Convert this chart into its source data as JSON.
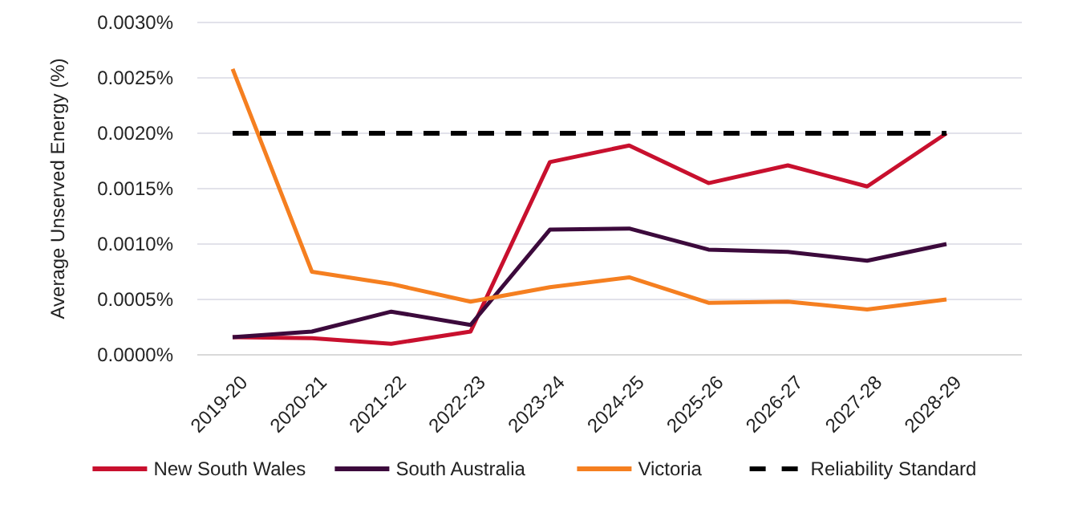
{
  "chart_data": {
    "type": "line",
    "ylabel": "Average Unserved Energy (%)",
    "categories": [
      "2019-20",
      "2020-21",
      "2021-22",
      "2022-23",
      "2023-24",
      "2024-25",
      "2025-26",
      "2026-27",
      "2027-28",
      "2028-29"
    ],
    "series": [
      {
        "name": "New South Wales",
        "color": "#c8102e",
        "values": [
          0.00016,
          0.00015,
          0.0001,
          0.00021,
          0.00174,
          0.00189,
          0.00155,
          0.00171,
          0.00152,
          0.002
        ]
      },
      {
        "name": "South Australia",
        "color": "#3c0a3c",
        "values": [
          0.00016,
          0.00021,
          0.00039,
          0.00027,
          0.00113,
          0.00114,
          0.00095,
          0.00093,
          0.00085,
          0.001
        ]
      },
      {
        "name": "Victoria",
        "color": "#f57f20",
        "values": [
          0.00258,
          0.00075,
          0.00064,
          0.00048,
          0.00061,
          0.0007,
          0.00047,
          0.00048,
          0.00041,
          0.0005
        ]
      },
      {
        "name": "Reliability Standard",
        "color": "#000000",
        "line_style": "dashed",
        "values": [
          0.002,
          0.002,
          0.002,
          0.002,
          0.002,
          0.002,
          0.002,
          0.002,
          0.002,
          0.002
        ]
      }
    ],
    "ylim": [
      0,
      0.003
    ],
    "yticks": [
      {
        "value": 0,
        "label": "0.0000%"
      },
      {
        "value": 0.0005,
        "label": "0.0005%"
      },
      {
        "value": 0.001,
        "label": "0.0010%"
      },
      {
        "value": 0.0015,
        "label": "0.0015%"
      },
      {
        "value": 0.002,
        "label": "0.0020%"
      },
      {
        "value": 0.0025,
        "label": "0.0025%"
      },
      {
        "value": 0.003,
        "label": "0.0030%"
      }
    ],
    "grid": "y",
    "legend": "bottom",
    "marker": "none",
    "line_style": "solid"
  }
}
